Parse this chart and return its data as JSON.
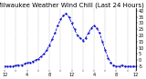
{
  "title": "Milwaukee Weather Wind Chill (Last 24 Hours)",
  "line_color": "#0000cc",
  "bg_color": "#ffffff",
  "grid_color": "#999999",
  "x_values": [
    0,
    1,
    2,
    3,
    4,
    5,
    6,
    7,
    8,
    9,
    10,
    11,
    12,
    13,
    14,
    15,
    16,
    17,
    18,
    19,
    20,
    21,
    22,
    23,
    24,
    25,
    26,
    27,
    28,
    29,
    30,
    31,
    32,
    33,
    34,
    35,
    36,
    37,
    38,
    39,
    40,
    41,
    42,
    43,
    44,
    45,
    46,
    47
  ],
  "y_values": [
    -5,
    -5,
    -5,
    -5,
    -4,
    -4,
    -4,
    -3,
    -2,
    -2,
    -1,
    0,
    1,
    3,
    5,
    8,
    12,
    17,
    22,
    28,
    33,
    36,
    38,
    35,
    30,
    25,
    20,
    18,
    16,
    18,
    22,
    26,
    28,
    26,
    22,
    15,
    8,
    2,
    -2,
    -4,
    -5,
    -5,
    -4,
    -5,
    -5,
    -5,
    -5,
    -5
  ],
  "ylim": [
    -8,
    42
  ],
  "xlim": [
    0,
    47
  ],
  "title_fontsize": 5.0,
  "tick_fontsize": 3.5,
  "yticks": [
    -5,
    0,
    5,
    10,
    15,
    20,
    25,
    30,
    35,
    40
  ],
  "ytick_labels": [
    "-5",
    "0",
    "5",
    "10",
    "15",
    "20",
    "25",
    "30",
    "35",
    "40"
  ],
  "xtick_positions": [
    0,
    4,
    8,
    12,
    16,
    20,
    24,
    28,
    32,
    36,
    40,
    44,
    47
  ],
  "xtick_labels": [
    "12",
    "",
    "4",
    "",
    "8",
    "",
    "12",
    "",
    "4",
    "",
    "8",
    "",
    "12"
  ]
}
